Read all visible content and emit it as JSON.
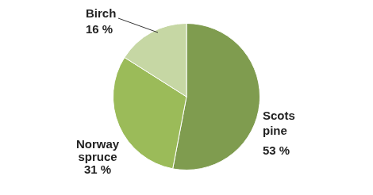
{
  "chart_data": {
    "type": "pie",
    "categories": [
      "Scots pine",
      "Norway spruce",
      "Birch"
    ],
    "values": [
      53,
      31,
      16
    ],
    "value_labels": [
      "53 %",
      "31 %",
      "16 %"
    ],
    "colors": [
      "#7f9c4f",
      "#9bbb59",
      "#c6d7a4"
    ],
    "data_labels": true
  }
}
